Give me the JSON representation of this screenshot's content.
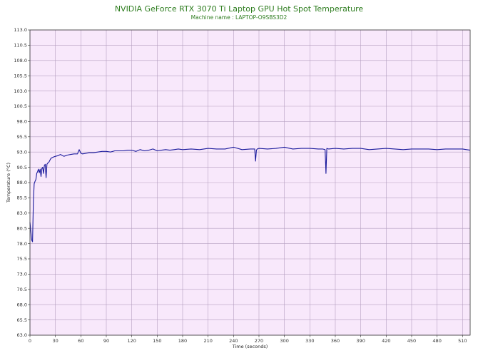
{
  "chart_data": {
    "type": "line",
    "title": "NVIDIA GeForce RTX 3070 Ti Laptop GPU Hot Spot Temperature",
    "subtitle": "Machine name : LAPTOP-O9SBS3D2",
    "xlabel": "Time (seconds)",
    "ylabel": "Temperature (°C)",
    "xlim": [
      0,
      519
    ],
    "ylim": [
      63.0,
      113.0
    ],
    "x_ticks": [
      0,
      30,
      60,
      90,
      120,
      150,
      180,
      210,
      240,
      270,
      300,
      330,
      360,
      390,
      420,
      450,
      480,
      510
    ],
    "y_ticks": [
      "113.0",
      "110.5",
      "108.0",
      "105.5",
      "103.0",
      "100.5",
      "98.0",
      "95.5",
      "93.0",
      "90.5",
      "88.0",
      "85.5",
      "83.0",
      "80.5",
      "78.0",
      "75.5",
      "73.0",
      "70.5",
      "68.0",
      "65.5",
      "63.0"
    ],
    "grid": true,
    "line_color": "#1a1a9c",
    "plot_bg": "#f8e8fb",
    "grid_color": "#b59fc0",
    "series": [
      {
        "x": [
          0,
          1,
          2,
          3,
          4,
          5,
          6,
          7,
          8,
          9,
          10,
          11,
          12,
          13,
          14,
          15,
          16,
          17,
          18,
          19,
          20,
          21,
          22,
          23,
          24,
          25,
          28,
          30,
          33,
          36,
          40,
          44,
          48,
          52,
          56,
          58,
          60,
          62,
          66,
          70,
          75,
          80,
          85,
          90,
          95,
          100,
          105,
          110,
          115,
          120,
          125,
          130,
          135,
          140,
          145,
          150,
          155,
          160,
          165,
          170,
          175,
          180,
          190,
          200,
          210,
          220,
          230,
          240,
          250,
          260,
          265,
          266,
          267,
          268,
          270,
          280,
          290,
          300,
          310,
          320,
          330,
          340,
          345,
          348,
          349,
          350,
          352,
          360,
          370,
          380,
          390,
          400,
          410,
          420,
          430,
          440,
          450,
          460,
          470,
          480,
          490,
          500,
          510,
          519
        ],
        "values": [
          81.5,
          80.0,
          78.6,
          78.3,
          85.0,
          87.8,
          88.2,
          88.5,
          89.5,
          89.8,
          90.2,
          89.6,
          90.2,
          89.0,
          90.3,
          90.5,
          89.5,
          90.8,
          91.0,
          88.8,
          91.0,
          91.2,
          91.3,
          91.5,
          91.8,
          92.0,
          92.2,
          92.3,
          92.4,
          92.6,
          92.3,
          92.5,
          92.6,
          92.7,
          92.7,
          93.4,
          92.8,
          92.7,
          92.8,
          92.9,
          92.9,
          93.0,
          93.1,
          93.1,
          93.0,
          93.2,
          93.2,
          93.2,
          93.3,
          93.3,
          93.1,
          93.4,
          93.2,
          93.3,
          93.5,
          93.2,
          93.3,
          93.4,
          93.3,
          93.4,
          93.5,
          93.4,
          93.5,
          93.4,
          93.6,
          93.5,
          93.5,
          93.8,
          93.4,
          93.5,
          93.5,
          91.5,
          93.3,
          93.5,
          93.6,
          93.5,
          93.6,
          93.8,
          93.5,
          93.6,
          93.6,
          93.5,
          93.5,
          93.4,
          89.5,
          93.6,
          93.5,
          93.6,
          93.5,
          93.6,
          93.6,
          93.4,
          93.5,
          93.6,
          93.5,
          93.4,
          93.5,
          93.5,
          93.5,
          93.4,
          93.5,
          93.5,
          93.5,
          93.3
        ]
      }
    ]
  }
}
